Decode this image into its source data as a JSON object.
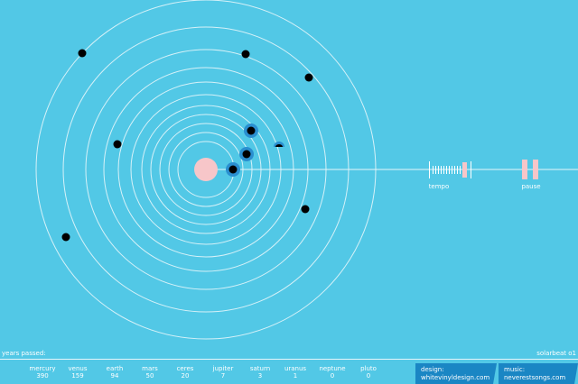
{
  "controls": {
    "tempo": "tempo",
    "pause": "pause"
  },
  "footer": {
    "years_label": "years passed:",
    "brand": "solarbeat o1",
    "planets": [
      {
        "name": "mercury",
        "count": 390
      },
      {
        "name": "venus",
        "count": 159
      },
      {
        "name": "earth",
        "count": 94
      },
      {
        "name": "mars",
        "count": 50
      },
      {
        "name": "ceres",
        "count": 20
      },
      {
        "name": "jupiter",
        "count": 7
      },
      {
        "name": "saturn",
        "count": 3
      },
      {
        "name": "uranus",
        "count": 1
      },
      {
        "name": "neptune",
        "count": 0
      },
      {
        "name": "pluto",
        "count": 0
      }
    ],
    "credits": [
      {
        "label": "design:",
        "link": "whitevinyldesign.com"
      },
      {
        "label": "music:",
        "link": "neverestsongs.com"
      }
    ]
  }
}
